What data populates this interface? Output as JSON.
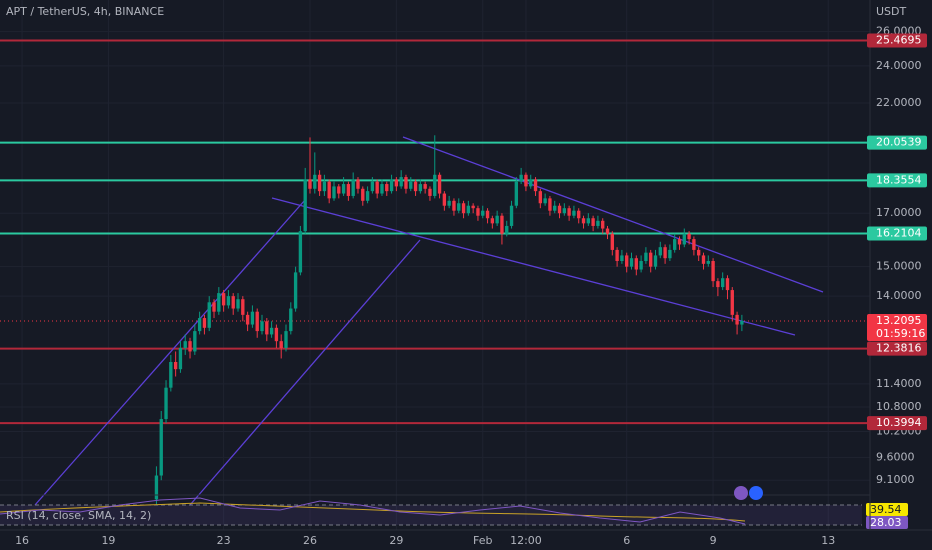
{
  "chart_data": {
    "type": "candlestick",
    "title": "APT / TetherUS, 4h, BINANCE",
    "currency": "USDT",
    "log_scale": true,
    "grid": true,
    "up_color": "#089981",
    "down_color": "#f23645",
    "ylim": [
      8.79,
      28.0
    ],
    "yticks": [
      {
        "value": 26,
        "label": "26.0000"
      },
      {
        "value": 24,
        "label": "24.0000"
      },
      {
        "value": 22,
        "label": "22.0000"
      },
      {
        "value": 17,
        "label": "17.0000"
      },
      {
        "value": 15,
        "label": "15.0000"
      },
      {
        "value": 14,
        "label": "14.0000"
      },
      {
        "value": 11.4,
        "label": "11.4000"
      },
      {
        "value": 10.8,
        "label": "10.8000"
      },
      {
        "value": 10.2,
        "label": "10.2000"
      },
      {
        "value": 9.6,
        "label": "9.6000"
      },
      {
        "value": 9.1,
        "label": "9.1000"
      }
    ],
    "xlim": [
      -32.6,
      148.7
    ],
    "xticks": [
      {
        "value": -28,
        "label": "16"
      },
      {
        "value": -10,
        "label": "19"
      },
      {
        "value": 14,
        "label": "23"
      },
      {
        "value": 32,
        "label": "26"
      },
      {
        "value": 50,
        "label": "29"
      },
      {
        "value": 68,
        "label": "Feb"
      },
      {
        "value": 77,
        "label": "12:00"
      },
      {
        "value": 98,
        "label": "6"
      },
      {
        "value": 116,
        "label": "9"
      },
      {
        "value": 140,
        "label": "13"
      }
    ],
    "levels": [
      {
        "value": 25.4695,
        "color": "#b2283a"
      },
      {
        "value": 20.0539,
        "color": "#2bc9a0"
      },
      {
        "value": 18.3554,
        "color": "#2bc9a0"
      },
      {
        "value": 16.2104,
        "color": "#2bc9a0"
      },
      {
        "value": 12.3816,
        "color": "#b2283a"
      },
      {
        "value": 10.3994,
        "color": "#b2283a"
      }
    ],
    "last_price": 13.2095,
    "countdown": "01:59:16",
    "rsi": {
      "label": "RSI (14, close, SMA, 14, 2)",
      "value": 39.54,
      "sma": 28.03
    },
    "candles": [
      [
        8.7,
        9.4,
        8.6,
        9.2
      ],
      [
        9.2,
        10.7,
        9.1,
        10.5
      ],
      [
        10.5,
        11.5,
        10.4,
        11.3
      ],
      [
        11.3,
        12.2,
        11.2,
        12.0
      ],
      [
        12.0,
        12.3,
        11.6,
        11.8
      ],
      [
        11.8,
        12.6,
        11.7,
        12.4
      ],
      [
        12.4,
        12.8,
        12.2,
        12.6
      ],
      [
        12.6,
        12.7,
        12.1,
        12.3
      ],
      [
        12.3,
        13.1,
        12.2,
        12.9
      ],
      [
        12.9,
        13.5,
        12.8,
        13.3
      ],
      [
        13.3,
        13.4,
        12.8,
        13.0
      ],
      [
        13.0,
        14.0,
        12.9,
        13.8
      ],
      [
        13.8,
        13.9,
        13.3,
        13.5
      ],
      [
        13.5,
        14.3,
        13.4,
        14.1
      ],
      [
        14.1,
        14.2,
        13.5,
        13.7
      ],
      [
        13.7,
        14.2,
        13.6,
        14.0
      ],
      [
        14.0,
        14.1,
        13.4,
        13.6
      ],
      [
        13.6,
        14.1,
        13.5,
        13.9
      ],
      [
        13.9,
        14.0,
        13.2,
        13.4
      ],
      [
        13.4,
        13.5,
        12.9,
        13.1
      ],
      [
        13.1,
        13.7,
        13.0,
        13.5
      ],
      [
        13.5,
        13.6,
        12.7,
        12.9
      ],
      [
        12.9,
        13.4,
        12.8,
        13.2
      ],
      [
        13.2,
        13.3,
        12.6,
        12.8
      ],
      [
        12.8,
        13.2,
        12.7,
        13.0
      ],
      [
        13.0,
        13.1,
        12.4,
        12.6
      ],
      [
        12.6,
        12.8,
        12.1,
        12.4
      ],
      [
        12.4,
        13.1,
        12.3,
        12.9
      ],
      [
        12.9,
        13.8,
        12.8,
        13.6
      ],
      [
        13.6,
        15.0,
        13.5,
        14.8
      ],
      [
        14.8,
        16.5,
        14.7,
        16.3
      ],
      [
        16.3,
        18.9,
        16.2,
        18.4
      ],
      [
        18.4,
        20.3,
        17.8,
        18.0
      ],
      [
        18.0,
        19.6,
        17.8,
        18.6
      ],
      [
        18.6,
        18.8,
        17.7,
        17.9
      ],
      [
        17.9,
        18.6,
        17.7,
        18.3
      ],
      [
        18.3,
        18.4,
        17.4,
        17.6
      ],
      [
        17.6,
        18.3,
        17.5,
        18.1
      ],
      [
        18.1,
        18.2,
        17.6,
        17.8
      ],
      [
        17.8,
        18.5,
        17.7,
        18.2
      ],
      [
        18.2,
        18.3,
        17.5,
        17.7
      ],
      [
        17.7,
        18.7,
        17.6,
        18.4
      ],
      [
        18.4,
        18.5,
        17.8,
        18.0
      ],
      [
        18.0,
        18.1,
        17.3,
        17.5
      ],
      [
        17.5,
        18.1,
        17.4,
        17.9
      ],
      [
        17.9,
        18.5,
        17.8,
        18.3
      ],
      [
        18.3,
        18.4,
        17.6,
        17.8
      ],
      [
        17.8,
        18.4,
        17.7,
        18.2
      ],
      [
        18.2,
        18.3,
        17.7,
        17.9
      ],
      [
        17.9,
        18.6,
        17.8,
        18.4
      ],
      [
        18.4,
        18.5,
        17.9,
        18.1
      ],
      [
        18.1,
        18.8,
        18.0,
        18.5
      ],
      [
        18.5,
        18.6,
        17.8,
        18.0
      ],
      [
        18.0,
        18.5,
        17.9,
        18.3
      ],
      [
        18.3,
        18.4,
        17.7,
        17.9
      ],
      [
        17.9,
        18.4,
        17.8,
        18.2
      ],
      [
        18.2,
        18.3,
        17.8,
        18.0
      ],
      [
        18.0,
        18.1,
        17.5,
        17.7
      ],
      [
        17.7,
        20.4,
        17.6,
        18.6
      ],
      [
        18.6,
        18.7,
        17.6,
        17.8
      ],
      [
        17.8,
        17.9,
        17.1,
        17.3
      ],
      [
        17.3,
        17.7,
        17.2,
        17.5
      ],
      [
        17.5,
        17.6,
        16.9,
        17.1
      ],
      [
        17.1,
        17.6,
        17.0,
        17.4
      ],
      [
        17.4,
        17.5,
        16.8,
        17.0
      ],
      [
        17.0,
        17.5,
        16.9,
        17.3
      ],
      [
        17.3,
        17.4,
        17.0,
        17.2
      ],
      [
        17.2,
        17.3,
        16.7,
        16.9
      ],
      [
        16.9,
        17.3,
        16.8,
        17.1
      ],
      [
        17.1,
        17.2,
        16.6,
        16.8
      ],
      [
        16.8,
        16.9,
        16.4,
        16.6
      ],
      [
        16.6,
        17.1,
        16.5,
        16.9
      ],
      [
        16.9,
        17.0,
        15.8,
        16.2
      ],
      [
        16.2,
        16.7,
        16.1,
        16.5
      ],
      [
        16.5,
        17.5,
        16.4,
        17.3
      ],
      [
        17.3,
        18.5,
        17.2,
        18.3
      ],
      [
        18.3,
        18.9,
        18.2,
        18.6
      ],
      [
        18.6,
        18.7,
        17.9,
        18.1
      ],
      [
        18.1,
        18.6,
        18.0,
        18.4
      ],
      [
        18.4,
        18.5,
        17.7,
        17.9
      ],
      [
        17.9,
        18.0,
        17.2,
        17.4
      ],
      [
        17.4,
        17.8,
        17.3,
        17.6
      ],
      [
        17.6,
        17.7,
        16.9,
        17.1
      ],
      [
        17.1,
        17.5,
        17.0,
        17.3
      ],
      [
        17.3,
        17.4,
        16.8,
        17.0
      ],
      [
        17.0,
        17.4,
        16.9,
        17.2
      ],
      [
        17.2,
        17.3,
        16.7,
        16.9
      ],
      [
        16.9,
        17.3,
        16.8,
        17.1
      ],
      [
        17.1,
        17.2,
        16.6,
        16.8
      ],
      [
        16.8,
        16.9,
        16.4,
        16.6
      ],
      [
        16.6,
        17.0,
        16.5,
        16.8
      ],
      [
        16.8,
        16.9,
        16.3,
        16.5
      ],
      [
        16.5,
        16.9,
        16.4,
        16.7
      ],
      [
        16.7,
        16.8,
        16.2,
        16.4
      ],
      [
        16.4,
        16.5,
        16.0,
        16.2
      ],
      [
        16.2,
        16.3,
        15.4,
        15.6
      ],
      [
        15.6,
        15.7,
        15.0,
        15.2
      ],
      [
        15.2,
        15.6,
        15.1,
        15.4
      ],
      [
        15.4,
        15.5,
        14.8,
        15.0
      ],
      [
        15.0,
        15.5,
        14.9,
        15.3
      ],
      [
        15.3,
        15.4,
        14.7,
        14.9
      ],
      [
        14.9,
        15.4,
        14.8,
        15.2
      ],
      [
        15.2,
        15.7,
        15.1,
        15.5
      ],
      [
        15.5,
        15.6,
        14.8,
        15.0
      ],
      [
        15.0,
        15.6,
        14.9,
        15.4
      ],
      [
        15.4,
        15.9,
        15.3,
        15.7
      ],
      [
        15.7,
        15.8,
        15.1,
        15.3
      ],
      [
        15.3,
        15.8,
        15.2,
        15.6
      ],
      [
        15.6,
        16.2,
        15.5,
        16.0
      ],
      [
        16.0,
        16.1,
        15.6,
        15.8
      ],
      [
        15.8,
        16.4,
        15.7,
        16.2
      ],
      [
        16.2,
        16.3,
        15.8,
        16.0
      ],
      [
        16.0,
        16.1,
        15.4,
        15.6
      ],
      [
        15.6,
        15.7,
        15.2,
        15.4
      ],
      [
        15.4,
        15.5,
        14.9,
        15.1
      ],
      [
        15.1,
        15.4,
        15.0,
        15.2
      ],
      [
        15.2,
        15.3,
        14.3,
        14.5
      ],
      [
        14.5,
        14.6,
        14.0,
        14.3
      ],
      [
        14.3,
        14.8,
        14.2,
        14.6
      ],
      [
        14.6,
        14.7,
        13.9,
        14.2
      ],
      [
        14.2,
        14.3,
        13.2,
        13.4
      ],
      [
        13.4,
        13.5,
        12.8,
        13.1
      ],
      [
        13.1,
        13.4,
        12.9,
        13.2095
      ]
    ]
  }
}
